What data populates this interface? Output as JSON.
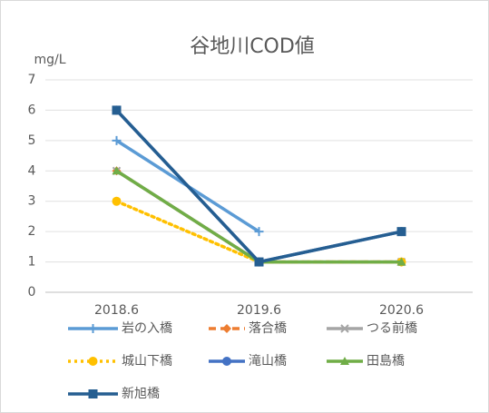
{
  "chart_data": {
    "type": "line",
    "title": "谷地川COD値",
    "y_axis_label": "mg/L",
    "categories": [
      "2018.6",
      "2019.6",
      "2020.6"
    ],
    "series": [
      {
        "name": "岩の入橋",
        "color": "#5b9bd5",
        "marker": "plus",
        "dash": "solid",
        "values": [
          5,
          2,
          null
        ]
      },
      {
        "name": "落合橋",
        "color": "#ed7d31",
        "marker": "diamond",
        "dash": "dash",
        "values": [
          4,
          1,
          1
        ]
      },
      {
        "name": "つる前橋",
        "color": "#a5a5a5",
        "marker": "x",
        "dash": "solid",
        "values": [
          4,
          1,
          1
        ]
      },
      {
        "name": "城山下橋",
        "color": "#ffc000",
        "marker": "circle",
        "dash": "dot",
        "values": [
          3,
          1,
          1
        ]
      },
      {
        "name": "滝山橋",
        "color": "#4472c4",
        "marker": "circle",
        "dash": "solid",
        "values": [
          6,
          1,
          2
        ]
      },
      {
        "name": "田島橋",
        "color": "#70ad47",
        "marker": "triangle",
        "dash": "solid",
        "values": [
          4,
          1,
          1
        ]
      },
      {
        "name": "新旭橋",
        "color": "#255e91",
        "marker": "square",
        "dash": "solid",
        "values": [
          6,
          1,
          2
        ]
      }
    ],
    "ylim": [
      0,
      7
    ],
    "yticks": [
      0,
      1,
      2,
      3,
      4,
      5,
      6,
      7
    ],
    "grid": true,
    "legend": "bottom"
  }
}
